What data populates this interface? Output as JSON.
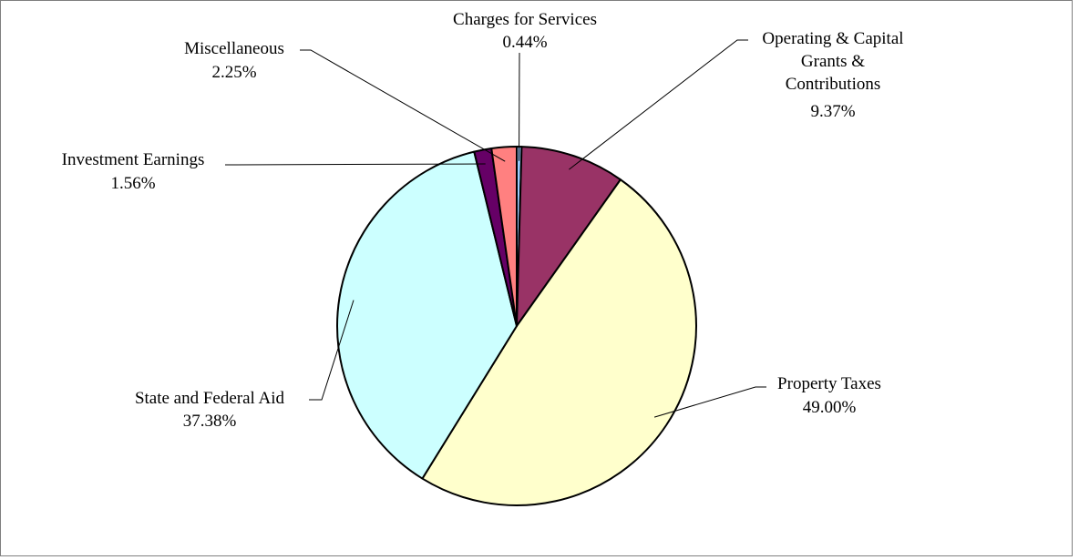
{
  "chart_data": {
    "type": "pie",
    "start_position": "12 o'clock",
    "direction": "clockwise",
    "slices": [
      {
        "label": "Charges for Services",
        "value_label": "0.44%",
        "value": 0.44,
        "color": "#99ccff"
      },
      {
        "label": "Operating & Capital Grants & Contributions",
        "label_lines": [
          "Operating & Capital",
          "Grants &",
          "Contributions"
        ],
        "value_label": "9.37%",
        "value": 9.37,
        "color": "#993366"
      },
      {
        "label": "Property Taxes",
        "value_label": "49.00%",
        "value": 49.0,
        "color": "#ffffcc"
      },
      {
        "label": "State and Federal Aid",
        "value_label": "37.38%",
        "value": 37.38,
        "color": "#ccffff"
      },
      {
        "label": "Investment Earnings",
        "value_label": "1.56%",
        "value": 1.56,
        "color": "#660066"
      },
      {
        "label": "Miscellaneous",
        "value_label": "2.25%",
        "value": 2.25,
        "color": "#ff8080"
      }
    ],
    "legend": "none",
    "data_labels": "outside with leader lines"
  }
}
